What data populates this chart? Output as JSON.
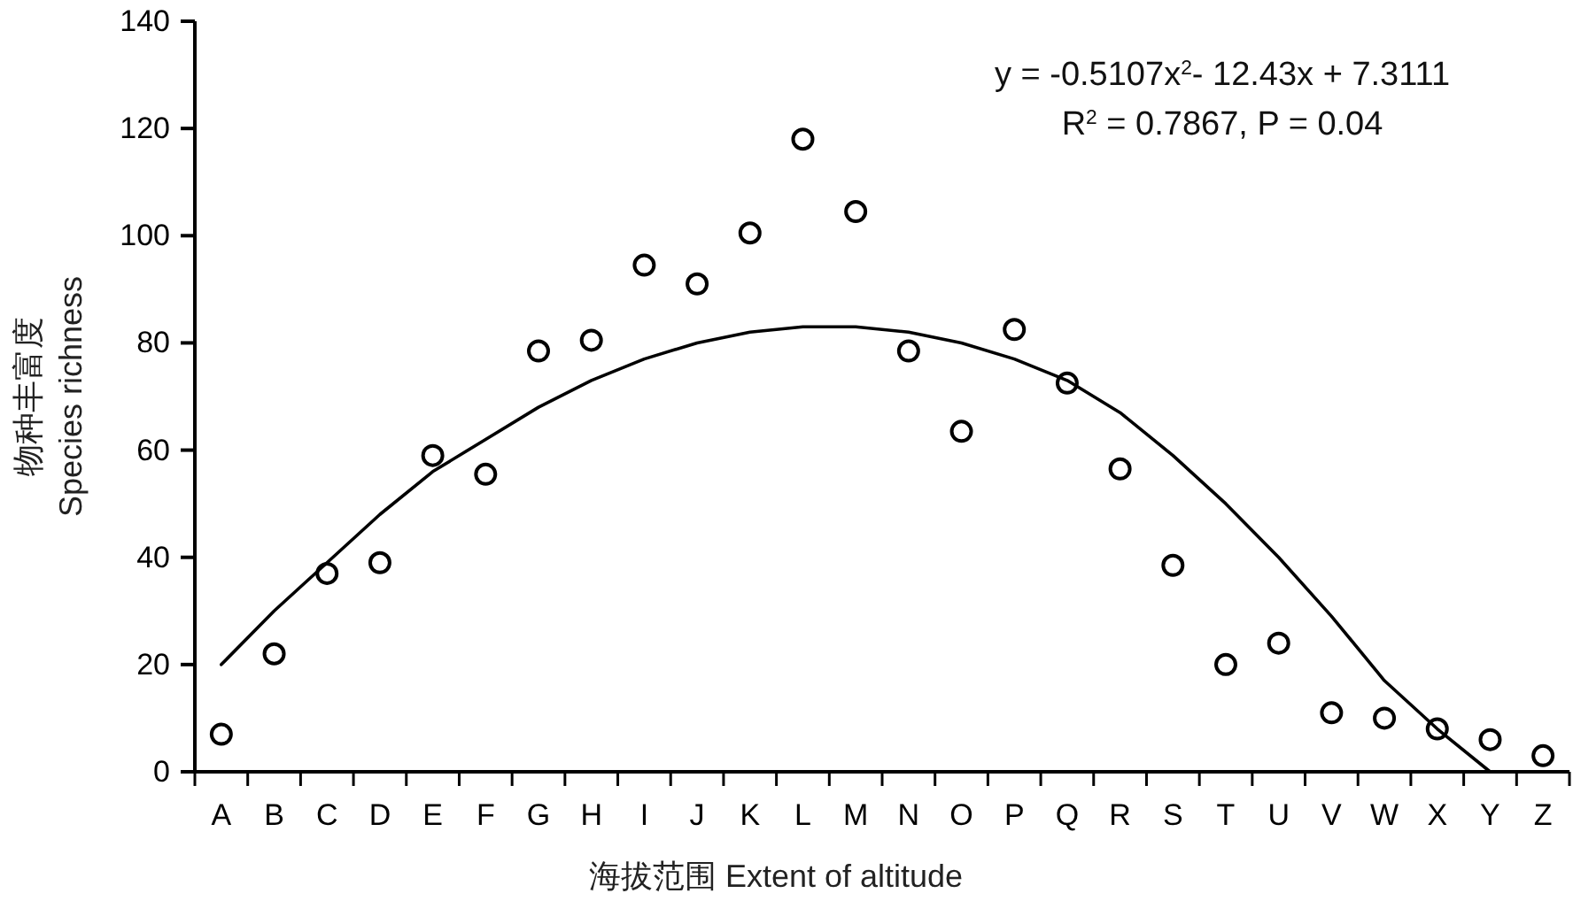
{
  "chart_data": {
    "type": "scatter",
    "xlabel": "海拔范围 Extent of altitude",
    "ylabel": "物种丰富度\nSpecies richness",
    "annotations": [
      "y = -0.5107x$^{2}$- 12.43x + 7.3111",
      "R$^{2}$ = 0.7867, P = 0.04"
    ],
    "categories": [
      "A",
      "B",
      "C",
      "D",
      "E",
      "F",
      "G",
      "H",
      "I",
      "J",
      "K",
      "L",
      "M",
      "N",
      "O",
      "P",
      "Q",
      "R",
      "S",
      "T",
      "U",
      "V",
      "W",
      "X",
      "Y",
      "Z"
    ],
    "ylim": [
      0,
      140
    ],
    "yticks": [
      0,
      20,
      40,
      60,
      80,
      100,
      120,
      140
    ],
    "grid": false,
    "series": [
      {
        "marker": "circle",
        "color": "#000000",
        "values": [
          7,
          22,
          37,
          39,
          59,
          55.5,
          78.5,
          80.5,
          94.5,
          91,
          100.5,
          118,
          104.5,
          78.5,
          63.5,
          82.5,
          72.5,
          56.5,
          38.5,
          20,
          24,
          11,
          10,
          8,
          6,
          3
        ]
      },
      {
        "type": "line",
        "color": "#000000",
        "values": [
          20,
          30,
          39,
          48,
          56,
          62,
          68,
          73,
          77,
          80,
          82,
          83,
          83,
          82,
          80,
          77,
          73,
          67,
          59,
          50,
          40,
          29,
          17,
          8,
          0,
          null
        ]
      }
    ]
  }
}
